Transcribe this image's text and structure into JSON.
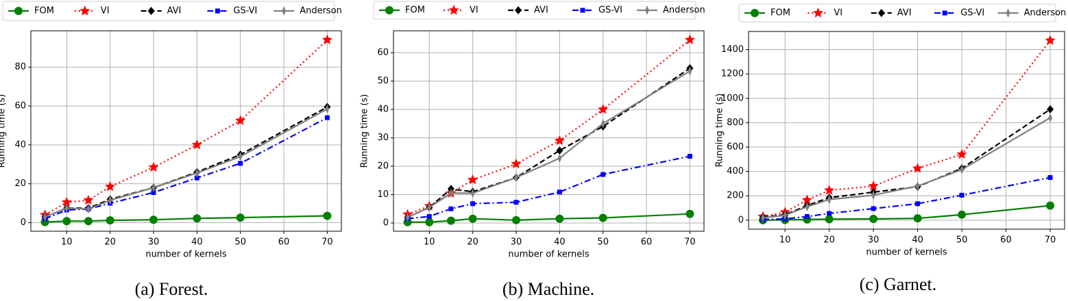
{
  "chart_data": [
    {
      "type": "line",
      "caption": "(a) Forest.",
      "x_label": "number of kernels",
      "y_label": "Running time (s)",
      "x": [
        5,
        10,
        15,
        20,
        30,
        40,
        50,
        70
      ],
      "xlim": [
        1.75,
        73.25
      ],
      "xticks": [
        10,
        20,
        30,
        40,
        50,
        60,
        70
      ],
      "ylim": [
        -4.4,
        98.7
      ],
      "yticks": [
        0,
        20,
        40,
        60,
        80
      ],
      "grid": true,
      "series": [
        {
          "name": "FOM",
          "color": "#008000",
          "linestyle": "solid",
          "marker": "circle",
          "values": [
            0.3,
            0.8,
            0.8,
            1.2,
            1.5,
            2.2,
            2.6,
            3.5
          ]
        },
        {
          "name": "VI",
          "color": "#ff0000",
          "linestyle": "dotted",
          "marker": "star",
          "values": [
            4,
            10.5,
            11.5,
            18.5,
            28.5,
            40,
            52.5,
            94
          ]
        },
        {
          "name": "AVI",
          "color": "#000000",
          "linestyle": "dashed",
          "marker": "diamond",
          "values": [
            3,
            7.5,
            7.5,
            12,
            18,
            26,
            35,
            59.5
          ]
        },
        {
          "name": "GS-VI",
          "color": "#0000ff",
          "linestyle": "dashdot",
          "marker": "square",
          "values": [
            2,
            6.5,
            7,
            10,
            15.5,
            23,
            30.5,
            54
          ]
        },
        {
          "name": "Anderson",
          "color": "#808080",
          "linestyle": "solid",
          "marker": "plus",
          "values": [
            3,
            7.5,
            7,
            11.5,
            18,
            25.5,
            34,
            58.5
          ]
        }
      ]
    },
    {
      "type": "line",
      "caption": "(b) Machine.",
      "x_label": "number of kernels",
      "y_label": "Running time (s)",
      "x": [
        5,
        10,
        15,
        20,
        30,
        40,
        50,
        70
      ],
      "xlim": [
        1.75,
        73.25
      ],
      "xticks": [
        10,
        20,
        30,
        40,
        50,
        60,
        70
      ],
      "ylim": [
        -2.9,
        67.7
      ],
      "yticks": [
        0,
        10,
        20,
        30,
        40,
        50,
        60
      ],
      "grid": true,
      "series": [
        {
          "name": "FOM",
          "color": "#008000",
          "linestyle": "solid",
          "marker": "circle",
          "values": [
            0.3,
            0.3,
            0.8,
            1.5,
            1,
            1.5,
            1.8,
            3.2
          ]
        },
        {
          "name": "VI",
          "color": "#ff0000",
          "linestyle": "dotted",
          "marker": "star",
          "values": [
            3,
            6,
            10.5,
            15.2,
            20.8,
            29,
            40,
            64.5
          ]
        },
        {
          "name": "AVI",
          "color": "#000000",
          "linestyle": "dashed",
          "marker": "diamond",
          "values": [
            2,
            5.5,
            12,
            11,
            16,
            25.5,
            34,
            54.5
          ]
        },
        {
          "name": "GS-VI",
          "color": "#0000ff",
          "linestyle": "dashdot",
          "marker": "square",
          "values": [
            1.5,
            2.3,
            5,
            6.8,
            7.3,
            10.9,
            17.1,
            23.5
          ]
        },
        {
          "name": "Anderson",
          "color": "#808080",
          "linestyle": "solid",
          "marker": "plus",
          "values": [
            2,
            5.5,
            10.5,
            10.5,
            16,
            22.8,
            35,
            53.5
          ]
        }
      ]
    },
    {
      "type": "line",
      "caption": "(c) Garnet.",
      "x_label": "number of kernels",
      "y_label": "Running time (s)",
      "x": [
        5,
        10,
        15,
        20,
        30,
        40,
        50,
        70
      ],
      "xlim": [
        1.75,
        73.25
      ],
      "xticks": [
        10,
        20,
        30,
        40,
        50,
        60,
        70
      ],
      "ylim": [
        -74,
        1549
      ],
      "yticks": [
        0,
        200,
        400,
        600,
        800,
        1000,
        1200,
        1400
      ],
      "grid": true,
      "series": [
        {
          "name": "FOM",
          "color": "#008000",
          "linestyle": "solid",
          "marker": "circle",
          "values": [
            0,
            2,
            5,
            8,
            10,
            15,
            45,
            120
          ]
        },
        {
          "name": "VI",
          "color": "#ff0000",
          "linestyle": "dotted",
          "marker": "star",
          "values": [
            30,
            65,
            165,
            245,
            280,
            425,
            540,
            1475
          ]
        },
        {
          "name": "AVI",
          "color": "#000000",
          "linestyle": "dashed",
          "marker": "diamond",
          "values": [
            25,
            45,
            120,
            185,
            230,
            275,
            425,
            910
          ]
        },
        {
          "name": "GS-VI",
          "color": "#0000ff",
          "linestyle": "dashdot",
          "marker": "square",
          "values": [
            5,
            10,
            30,
            55,
            95,
            135,
            205,
            350
          ]
        },
        {
          "name": "Anderson",
          "color": "#808080",
          "linestyle": "solid",
          "marker": "plus",
          "values": [
            20,
            40,
            110,
            170,
            205,
            280,
            415,
            840
          ]
        }
      ]
    }
  ]
}
